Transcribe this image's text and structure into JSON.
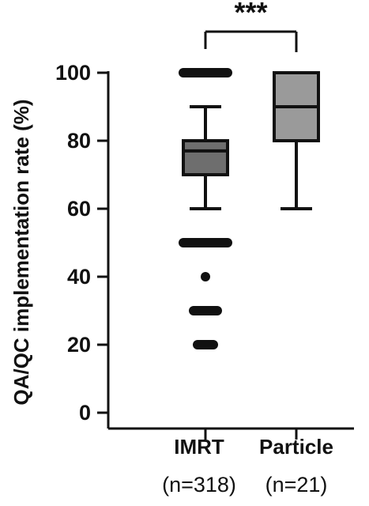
{
  "chart_data": {
    "type": "box",
    "ylabel": "QA/QC implementation rate (%)",
    "ylim": [
      0,
      100
    ],
    "yticks": [
      0,
      20,
      40,
      60,
      80,
      100
    ],
    "grid": false,
    "categories": [
      "IMRT",
      "Particle"
    ],
    "sample_sizes": [
      "(n=318)",
      "(n=21)"
    ],
    "boxes": [
      {
        "category": "IMRT",
        "whisker_low": 60,
        "q1": 70,
        "median": 77,
        "q3": 80,
        "whisker_high": 90,
        "outliers": [
          100,
          50,
          40,
          30,
          20
        ],
        "color": "#6e6e6e"
      },
      {
        "category": "Particle",
        "whisker_low": 60,
        "q1": 80,
        "median": 90,
        "q3": 100,
        "whisker_high": 100,
        "outliers": [],
        "color": "#9a9a9a"
      }
    ],
    "significance": "***"
  }
}
